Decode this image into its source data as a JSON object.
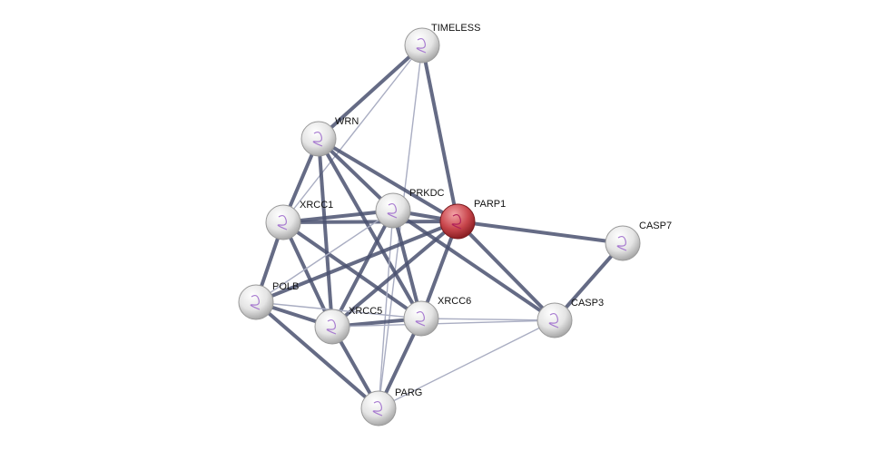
{
  "network": {
    "query_node_color": "#c0393f",
    "node_color": "#e6e6e6",
    "edge_color_strong": "#4a5170",
    "edge_color_weak": "#a9adc2",
    "nodes": [
      {
        "id": "TIMELESS",
        "label": "TIMELESS",
        "query": false
      },
      {
        "id": "WRN",
        "label": "WRN",
        "query": false
      },
      {
        "id": "PRKDC",
        "label": "PRKDC",
        "query": false
      },
      {
        "id": "PARP1",
        "label": "PARP1",
        "query": true
      },
      {
        "id": "XRCC1",
        "label": "XRCC1",
        "query": false
      },
      {
        "id": "CASP7",
        "label": "CASP7",
        "query": false
      },
      {
        "id": "POLB",
        "label": "POLB",
        "query": false
      },
      {
        "id": "XRCC5",
        "label": "XRCC5",
        "query": false
      },
      {
        "id": "XRCC6",
        "label": "XRCC6",
        "query": false
      },
      {
        "id": "CASP3",
        "label": "CASP3",
        "query": false
      },
      {
        "id": "PARG",
        "label": "PARG",
        "query": false
      }
    ],
    "edges": [
      [
        "TIMELESS",
        "WRN",
        "strong"
      ],
      [
        "TIMELESS",
        "PARP1",
        "strong"
      ],
      [
        "TIMELESS",
        "XRCC1",
        "weak"
      ],
      [
        "TIMELESS",
        "PARG",
        "weak"
      ],
      [
        "WRN",
        "XRCC1",
        "strong"
      ],
      [
        "WRN",
        "XRCC5",
        "strong"
      ],
      [
        "WRN",
        "PRKDC",
        "strong"
      ],
      [
        "WRN",
        "PARP1",
        "strong"
      ],
      [
        "WRN",
        "XRCC6",
        "strong"
      ],
      [
        "XRCC1",
        "PRKDC",
        "strong"
      ],
      [
        "XRCC1",
        "PARP1",
        "strong"
      ],
      [
        "XRCC1",
        "POLB",
        "strong"
      ],
      [
        "XRCC1",
        "XRCC5",
        "strong"
      ],
      [
        "XRCC1",
        "XRCC6",
        "strong"
      ],
      [
        "PRKDC",
        "PARP1",
        "strong"
      ],
      [
        "PRKDC",
        "XRCC5",
        "strong"
      ],
      [
        "PRKDC",
        "XRCC6",
        "strong"
      ],
      [
        "PRKDC",
        "POLB",
        "weak"
      ],
      [
        "PRKDC",
        "CASP3",
        "strong"
      ],
      [
        "PRKDC",
        "PARG",
        "weak"
      ],
      [
        "PARP1",
        "POLB",
        "strong"
      ],
      [
        "PARP1",
        "XRCC5",
        "strong"
      ],
      [
        "PARP1",
        "XRCC6",
        "strong"
      ],
      [
        "PARP1",
        "CASP7",
        "strong"
      ],
      [
        "PARP1",
        "CASP3",
        "strong"
      ],
      [
        "POLB",
        "XRCC5",
        "strong"
      ],
      [
        "POLB",
        "XRCC6",
        "weak"
      ],
      [
        "POLB",
        "PARG",
        "strong"
      ],
      [
        "XRCC5",
        "XRCC6",
        "strong"
      ],
      [
        "XRCC5",
        "PARG",
        "strong"
      ],
      [
        "XRCC5",
        "CASP3",
        "weak"
      ],
      [
        "XRCC6",
        "PARG",
        "strong"
      ],
      [
        "XRCC6",
        "CASP3",
        "weak"
      ],
      [
        "CASP3",
        "CASP7",
        "strong"
      ],
      [
        "CASP3",
        "PARG",
        "weak"
      ]
    ]
  }
}
